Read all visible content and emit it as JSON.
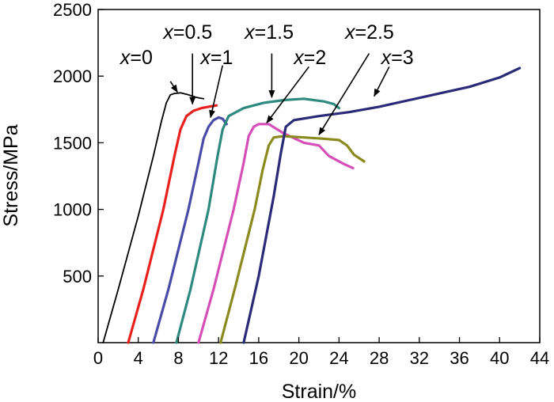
{
  "chart_data": {
    "type": "line",
    "xlabel": "Strain/%",
    "ylabel": "Stress/MPa",
    "xlim": [
      0,
      44
    ],
    "ylim": [
      0,
      2500
    ],
    "xticks": [
      0,
      4,
      8,
      12,
      16,
      20,
      24,
      28,
      32,
      36,
      40,
      44
    ],
    "yticks": [
      500,
      1000,
      1500,
      2000,
      2500
    ],
    "grid": false,
    "legend": "none",
    "series": [
      {
        "name": "x=0",
        "color": "#000000",
        "x": [
          0.5,
          2.0,
          4.0,
          5.5,
          6.3,
          6.8,
          7.2,
          7.6,
          8.2,
          9.0,
          9.8,
          10.5
        ],
        "y": [
          0,
          400,
          950,
          1400,
          1660,
          1800,
          1860,
          1870,
          1875,
          1860,
          1840,
          1830
        ]
      },
      {
        "name": "x=0.5",
        "color": "#e8211d",
        "x": [
          3.0,
          4.5,
          6.5,
          7.6,
          8.2,
          8.8,
          9.5,
          10.3,
          11.0,
          11.8
        ],
        "y": [
          0,
          400,
          1000,
          1400,
          1600,
          1700,
          1740,
          1760,
          1770,
          1780
        ]
      },
      {
        "name": "x=1",
        "color": "#4a4aa8",
        "x": [
          5.5,
          7.0,
          9.0,
          10.0,
          10.5,
          11.0,
          11.5,
          12.0,
          12.4,
          12.6,
          12.8
        ],
        "y": [
          0,
          400,
          1000,
          1350,
          1530,
          1620,
          1670,
          1690,
          1680,
          1660,
          1640
        ]
      },
      {
        "name": "x=1.5",
        "color": "#2e8a7e",
        "x": [
          7.8,
          9.2,
          11.0,
          11.9,
          12.4,
          13.0,
          14.5,
          16.5,
          18.5,
          20.5,
          22.5,
          23.5,
          24.0
        ],
        "y": [
          0,
          400,
          1000,
          1400,
          1600,
          1700,
          1760,
          1800,
          1820,
          1830,
          1810,
          1790,
          1760
        ]
      },
      {
        "name": "x=2",
        "color": "#d64fb8",
        "x": [
          10.0,
          11.5,
          13.5,
          14.5,
          15.0,
          15.5,
          16.0,
          17.0,
          18.5,
          20.5,
          22.0,
          23.0,
          24.5,
          25.4
        ],
        "y": [
          0,
          400,
          1000,
          1350,
          1550,
          1620,
          1640,
          1640,
          1570,
          1500,
          1480,
          1400,
          1340,
          1310
        ]
      },
      {
        "name": "x=2.5",
        "color": "#8a8a1e",
        "x": [
          12.2,
          13.6,
          15.6,
          16.4,
          17.0,
          17.5,
          18.5,
          20.5,
          22.5,
          24.0,
          24.8,
          25.5,
          26.5
        ],
        "y": [
          0,
          400,
          1000,
          1300,
          1480,
          1540,
          1550,
          1540,
          1530,
          1520,
          1480,
          1410,
          1360
        ]
      },
      {
        "name": "x=3",
        "color": "#2a2a78",
        "x": [
          14.5,
          16.0,
          17.5,
          18.2,
          18.7,
          19.5,
          22.0,
          25.0,
          28.0,
          31.0,
          34.0,
          37.0,
          40.0,
          42.0
        ],
        "y": [
          0,
          500,
          1100,
          1420,
          1620,
          1670,
          1700,
          1730,
          1770,
          1820,
          1870,
          1920,
          1990,
          2060
        ]
      }
    ],
    "annotations": [
      {
        "prefix": "x",
        "rest": "=0",
        "arrow_from": [
          7.2,
          1960
        ],
        "arrow_to": [
          7.9,
          1880
        ]
      },
      {
        "prefix": "x",
        "rest": "=0.5",
        "arrow_from": [
          9.4,
          2170
        ],
        "arrow_to": [
          9.4,
          1790
        ]
      },
      {
        "prefix": "x",
        "rest": "=1",
        "arrow_from": [
          12.4,
          2080
        ],
        "arrow_to": [
          11.2,
          1690
        ]
      },
      {
        "prefix": "x",
        "rest": "=1.5",
        "arrow_from": [
          17.3,
          2170
        ],
        "arrow_to": [
          17.3,
          1840
        ]
      },
      {
        "prefix": "x",
        "rest": "=2",
        "arrow_from": [
          21.0,
          2070
        ],
        "arrow_to": [
          16.8,
          1650
        ]
      },
      {
        "prefix": "x",
        "rest": "=2.5",
        "arrow_from": [
          27.0,
          2170
        ],
        "arrow_to": [
          22.0,
          1560
        ]
      },
      {
        "prefix": "x",
        "rest": "=3",
        "arrow_from": [
          29.0,
          2070
        ],
        "arrow_to": [
          27.5,
          1850
        ]
      }
    ],
    "label_positions_data": [
      {
        "x": 2.2,
        "y": 2090
      },
      {
        "x": 6.5,
        "y": 2280
      },
      {
        "x": 10.2,
        "y": 2090
      },
      {
        "x": 14.6,
        "y": 2280
      },
      {
        "x": 19.5,
        "y": 2090
      },
      {
        "x": 24.6,
        "y": 2280
      },
      {
        "x": 28.2,
        "y": 2090
      }
    ]
  }
}
